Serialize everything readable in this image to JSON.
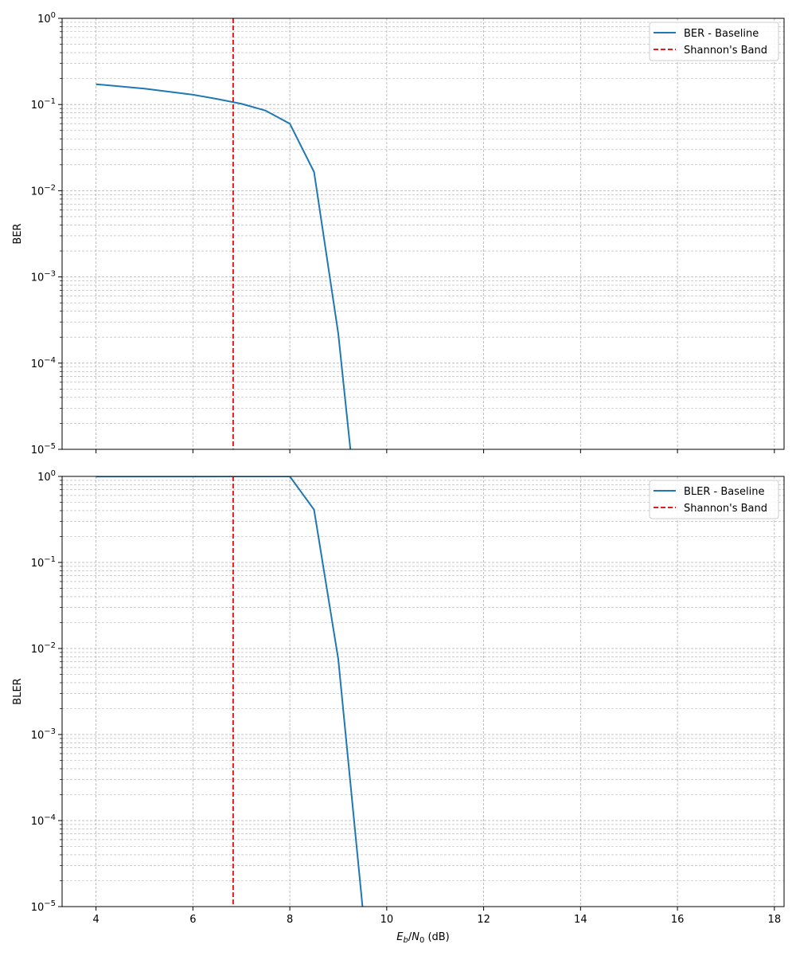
{
  "chart_data": [
    {
      "type": "line",
      "yscale": "log",
      "xlim": [
        3.3,
        18.2
      ],
      "ylim": [
        1e-05,
        1
      ],
      "xticks": [
        4,
        6,
        8,
        10,
        12,
        14,
        16,
        18
      ],
      "xtick_labels_shown": false,
      "ylabel": "BER",
      "xlabel": "",
      "grid": true,
      "legend": "top-right",
      "series": [
        {
          "name": "BER - Baseline",
          "color": "#1f77b4",
          "style": "solid",
          "x": [
            4,
            5,
            6,
            6.5,
            7,
            7.5,
            8,
            8.5,
            9,
            9.25
          ],
          "y": [
            0.172,
            0.153,
            0.13,
            0.116,
            0.102,
            0.085,
            0.06,
            0.0165,
            0.00022,
            1e-05
          ]
        },
        {
          "name": "Shannon's Band",
          "color": "#e41a1c",
          "style": "dashed",
          "vline_x": 6.83
        }
      ]
    },
    {
      "type": "line",
      "yscale": "log",
      "xlim": [
        3.3,
        18.2
      ],
      "ylim": [
        1e-05,
        1
      ],
      "xticks": [
        4,
        6,
        8,
        10,
        12,
        14,
        16,
        18
      ],
      "xtick_labels_shown": true,
      "ylabel": "BLER",
      "xlabel": "E_b/N_0 (dB)",
      "grid": true,
      "legend": "top-right",
      "series": [
        {
          "name": "BLER - Baseline",
          "color": "#1f77b4",
          "style": "solid",
          "x": [
            4,
            5,
            6,
            7,
            8,
            8.5,
            9,
            9.5
          ],
          "y": [
            0.996,
            0.997,
            0.998,
            0.999,
            1.0,
            0.41,
            0.0075,
            1e-05
          ]
        },
        {
          "name": "Shannon's Band",
          "color": "#e41a1c",
          "style": "dashed",
          "vline_x": 6.83
        }
      ]
    }
  ]
}
